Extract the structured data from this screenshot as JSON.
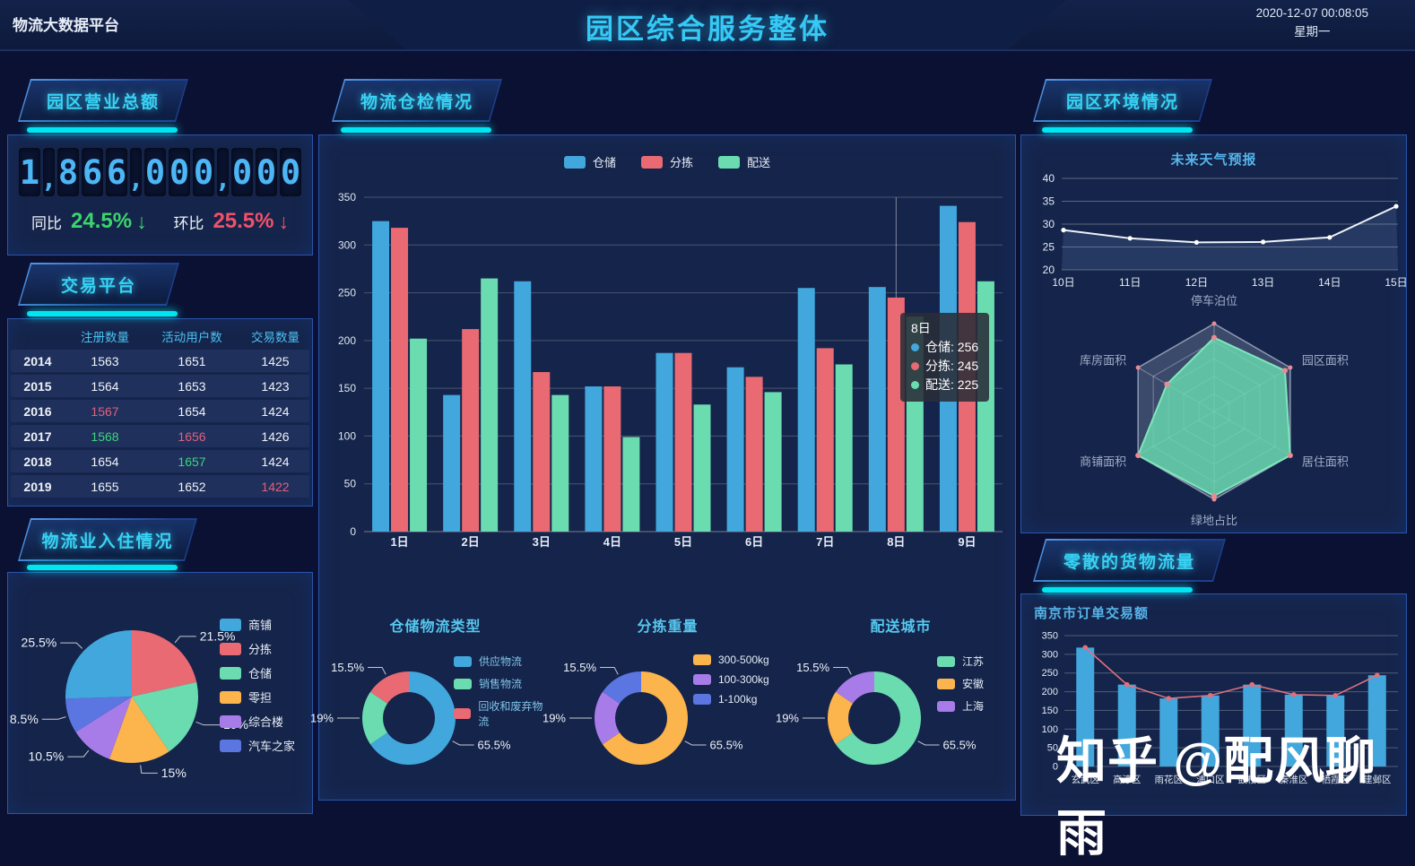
{
  "header": {
    "app_title": "物流大数据平台",
    "page_title": "园区综合服务整体",
    "datetime": "2020-12-07 00:08:05",
    "weekday": "星期一"
  },
  "watermark": "知乎 @配风聊雨",
  "colors": {
    "accent_cyan": "#00e5f2",
    "title_cyan": "#35c9f5",
    "blue_series": "#41a7dc",
    "red_series": "#e96a72",
    "green_series": "#6bdcb0",
    "orange_series": "#fcb44c",
    "purple_series": "#a77ce8",
    "indigo_series": "#5b76e0",
    "up_green": "#3ed47e",
    "down_pink": "#e0607c"
  },
  "left": {
    "revenue": {
      "title": "园区营业总额",
      "amount": "1,866,000,000",
      "yoy_label": "同比",
      "yoy_value": "24.5%",
      "yoy_color": "#3ad56d",
      "mom_label": "环比",
      "mom_value": "25.5%",
      "mom_color": "#f0516a"
    },
    "trading": {
      "title": "交易平台",
      "columns": [
        "注册数量",
        "活动用户数",
        "交易数量"
      ],
      "rows": [
        {
          "year": "2014",
          "cells": [
            {
              "v": "1563"
            },
            {
              "v": "1651"
            },
            {
              "v": "1425"
            }
          ]
        },
        {
          "year": "2015",
          "cells": [
            {
              "v": "1564"
            },
            {
              "v": "1653"
            },
            {
              "v": "1423"
            }
          ]
        },
        {
          "year": "2016",
          "cells": [
            {
              "v": "1567",
              "c": "pink"
            },
            {
              "v": "1654"
            },
            {
              "v": "1424"
            }
          ]
        },
        {
          "year": "2017",
          "cells": [
            {
              "v": "1568",
              "c": "green"
            },
            {
              "v": "1656",
              "c": "pink"
            },
            {
              "v": "1426"
            }
          ]
        },
        {
          "year": "2018",
          "cells": [
            {
              "v": "1654"
            },
            {
              "v": "1657",
              "c": "green"
            },
            {
              "v": "1424"
            }
          ]
        },
        {
          "year": "2019",
          "cells": [
            {
              "v": "1655"
            },
            {
              "v": "1652"
            },
            {
              "v": "1422",
              "c": "pink"
            }
          ]
        }
      ]
    },
    "occupancy": {
      "title": "物流业入住情况"
    }
  },
  "middle": {
    "title": "物流仓检情况"
  },
  "right": {
    "env_title": "园区环境情况",
    "flow_title": "零散的货物流量"
  },
  "chart_data": [
    {
      "id": "warehouse-bars",
      "type": "bar",
      "title": "物流仓检情况",
      "categories": [
        "1日",
        "2日",
        "3日",
        "4日",
        "5日",
        "6日",
        "7日",
        "8日",
        "9日"
      ],
      "series": [
        {
          "name": "仓储",
          "color": "#41a7dc",
          "values": [
            325,
            143,
            262,
            152,
            187,
            172,
            255,
            256,
            341
          ]
        },
        {
          "name": "分拣",
          "color": "#e96a72",
          "values": [
            318,
            212,
            167,
            152,
            187,
            162,
            192,
            245,
            324
          ]
        },
        {
          "name": "配送",
          "color": "#6bdcb0",
          "values": [
            202,
            265,
            143,
            99,
            133,
            146,
            175,
            225,
            262
          ]
        }
      ],
      "ylim": [
        0,
        350
      ],
      "ytick_step": 50,
      "grid": true,
      "legend_position": "top",
      "tooltip": {
        "category": "8日",
        "items": [
          {
            "name": "仓储",
            "value": 256,
            "color": "#41a7dc"
          },
          {
            "name": "分拣",
            "value": 245,
            "color": "#e96a72"
          },
          {
            "name": "配送",
            "value": 225,
            "color": "#6bdcb0"
          }
        ]
      }
    },
    {
      "id": "occupancy-pie",
      "type": "pie",
      "title": "物流业入住情况",
      "slices": [
        {
          "label": "分拣",
          "value": 21.5,
          "color": "#e96a72"
        },
        {
          "label": "仓储",
          "value": 19,
          "color": "#6bdcb0"
        },
        {
          "label": "零担",
          "value": 15,
          "color": "#fcb44c"
        },
        {
          "label": "综合楼",
          "value": 10.5,
          "color": "#a77ce8"
        },
        {
          "label": "汽车之家",
          "value": 8.5,
          "color": "#5b76e0"
        },
        {
          "label": "商铺",
          "value": 25.5,
          "color": "#41a7dc"
        }
      ],
      "legend_order": [
        "商铺",
        "分拣",
        "仓储",
        "零担",
        "综合楼",
        "汽车之家"
      ],
      "legend_position": "right"
    },
    {
      "id": "storage-type-donut",
      "type": "pie",
      "subtype": "donut",
      "title": "仓储物流类型",
      "slices": [
        {
          "label": "供应物流",
          "value": 65.5,
          "color": "#41a7dc"
        },
        {
          "label": "销售物流",
          "value": 19,
          "color": "#6bdcb0"
        },
        {
          "label": "回收和废弃物流",
          "value": 15.5,
          "color": "#e96a72"
        }
      ],
      "legend_position": "right",
      "legend_text_color": "#7fc4ea"
    },
    {
      "id": "sorting-weight-donut",
      "type": "pie",
      "subtype": "donut",
      "title": "分拣重量",
      "slices": [
        {
          "label": "300-500kg",
          "value": 65.5,
          "color": "#fcb44c"
        },
        {
          "label": "100-300kg",
          "value": 19,
          "color": "#a77ce8"
        },
        {
          "label": "1-100kg",
          "value": 15.5,
          "color": "#5b76e0"
        }
      ],
      "legend_position": "right",
      "legend_text_color": "#e4ecf6"
    },
    {
      "id": "delivery-city-donut",
      "type": "pie",
      "subtype": "donut",
      "title": "配送城市",
      "slices": [
        {
          "label": "江苏",
          "value": 65.5,
          "color": "#6bdcb0"
        },
        {
          "label": "安徽",
          "value": 19,
          "color": "#fcb44c"
        },
        {
          "label": "上海",
          "value": 15.5,
          "color": "#a77ce8"
        }
      ],
      "legend_position": "right",
      "legend_text_color": "#e4ecf6"
    },
    {
      "id": "weather-line",
      "type": "line",
      "title": "未来天气预报",
      "x": [
        "10日",
        "11日",
        "12日",
        "13日",
        "14日",
        "15日"
      ],
      "y": [
        28.7,
        26.9,
        26.0,
        26.1,
        27.1,
        33.9
      ],
      "ylim": [
        20,
        40
      ],
      "ytick_step": 5,
      "line_color": "#eef2f8",
      "area": true
    },
    {
      "id": "env-radar",
      "type": "radar",
      "indicators": [
        "停车泊位",
        "园区面积",
        "居住面积",
        "绿地占比",
        "商铺面积",
        "库房面积"
      ],
      "max": 100,
      "outer_values": [
        100,
        100,
        100,
        100,
        100,
        100
      ],
      "values": [
        84,
        93,
        100,
        96,
        100,
        62
      ],
      "fill": "rgba(105,219,176,0.82)",
      "stroke": "#7fe6bd",
      "marker_color": "#ea8a92"
    },
    {
      "id": "nanjing-orders",
      "type": "bar",
      "title": "南京市订单交易额",
      "categories": [
        "玄武区",
        "高淳区",
        "雨花区",
        "浦口区",
        "鼓楼区",
        "秦淮区",
        "栖霞区",
        "建邺区"
      ],
      "series": [
        {
          "name": "订单交易额",
          "color": "#41a7dc",
          "values": [
            318,
            219,
            182,
            190,
            219,
            192,
            190,
            244
          ]
        }
      ],
      "line_overlay": {
        "color": "#e0707e",
        "values": [
          318,
          219,
          182,
          190,
          219,
          192,
          190,
          244
        ]
      },
      "ylim": [
        0,
        350
      ],
      "ytick_step": 50
    }
  ]
}
